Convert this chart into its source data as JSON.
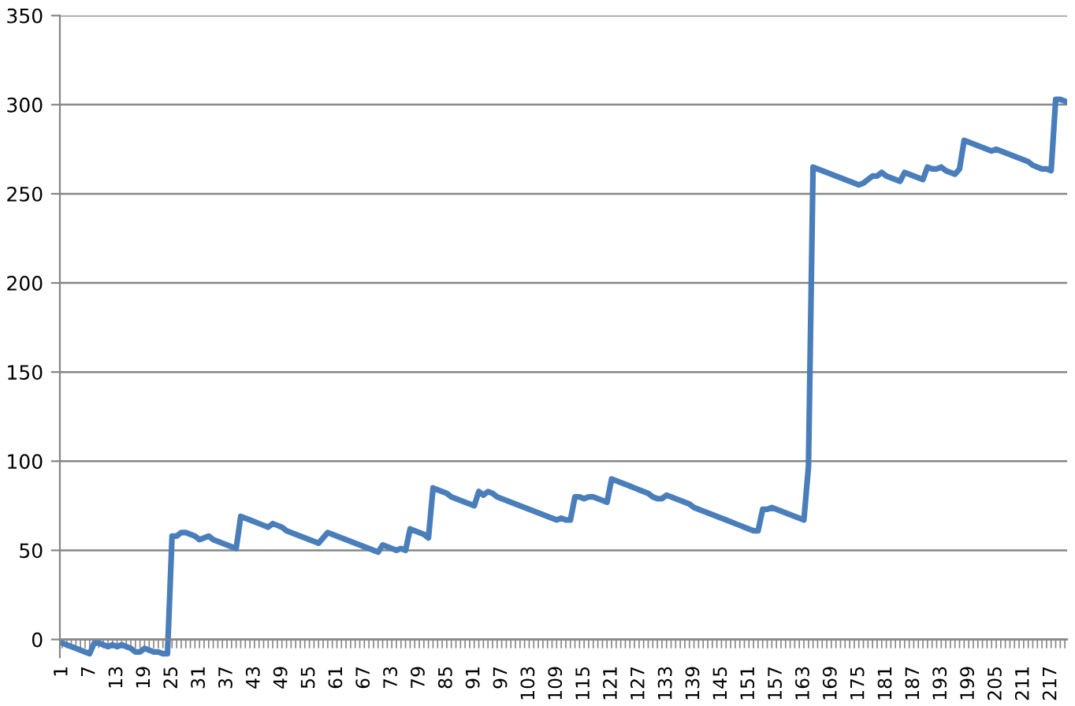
{
  "chart_data": {
    "type": "line",
    "categories": [
      "1",
      null,
      null,
      null,
      null,
      null,
      "7",
      null,
      null,
      null,
      null,
      null,
      "13",
      null,
      null,
      null,
      null,
      null,
      "19",
      null,
      null,
      null,
      null,
      null,
      "25",
      null,
      null,
      null,
      null,
      null,
      "31",
      null,
      null,
      null,
      null,
      null,
      "37",
      null,
      null,
      null,
      null,
      null,
      "43",
      null,
      null,
      null,
      null,
      null,
      "49",
      null,
      null,
      null,
      null,
      null,
      "55",
      null,
      null,
      null,
      null,
      null,
      "61",
      null,
      null,
      null,
      null,
      null,
      "67",
      null,
      null,
      null,
      null,
      null,
      "73",
      null,
      null,
      null,
      null,
      null,
      "79",
      null,
      null,
      null,
      null,
      null,
      "85",
      null,
      null,
      null,
      null,
      null,
      "91",
      null,
      null,
      null,
      null,
      null,
      "97",
      null,
      null,
      null,
      null,
      null,
      "103",
      null,
      null,
      null,
      null,
      null,
      "109",
      null,
      null,
      null,
      null,
      null,
      "115",
      null,
      null,
      null,
      null,
      null,
      "121",
      null,
      null,
      null,
      null,
      null,
      "127",
      null,
      null,
      null,
      null,
      null,
      "133",
      null,
      null,
      null,
      null,
      null,
      "139",
      null,
      null,
      null,
      null,
      null,
      "145",
      null,
      null,
      null,
      null,
      null,
      "151",
      null,
      null,
      null,
      null,
      null,
      "157",
      null,
      null,
      null,
      null,
      null,
      "163",
      null,
      null,
      null,
      null,
      null,
      "169",
      null,
      null,
      null,
      null,
      null,
      "175",
      null,
      null,
      null,
      null,
      null,
      "181",
      null,
      null,
      null,
      null,
      null,
      "187",
      null,
      null,
      null,
      null,
      null,
      "193",
      null,
      null,
      null,
      null,
      null,
      "199",
      null,
      null,
      null,
      null,
      null,
      "205",
      null,
      null,
      null,
      null,
      null,
      "211",
      null,
      null,
      null,
      null,
      null,
      "217",
      null,
      null,
      null
    ],
    "series": [
      {
        "color": "#4a7ebb",
        "values": [
          -2,
          -3,
          -4,
          -5,
          -6,
          -7,
          -8,
          -2,
          -2,
          -3,
          -4,
          -3,
          -4,
          -3,
          -4,
          -5,
          -7,
          -7,
          -5,
          -6,
          -7,
          -7,
          -8,
          -8,
          58,
          58,
          60,
          60,
          59,
          58,
          56,
          57,
          58,
          56,
          55,
          54,
          53,
          52,
          51,
          69,
          68,
          67,
          66,
          65,
          64,
          63,
          65,
          64,
          63,
          61,
          60,
          59,
          58,
          57,
          56,
          55,
          54,
          57,
          60,
          59,
          58,
          57,
          56,
          55,
          54,
          53,
          52,
          51,
          50,
          49,
          53,
          52,
          51,
          50,
          51,
          50,
          62,
          61,
          60,
          59,
          57,
          85,
          84,
          83,
          82,
          80,
          79,
          78,
          77,
          76,
          75,
          83,
          81,
          83,
          82,
          80,
          79,
          78,
          77,
          76,
          75,
          74,
          73,
          72,
          71,
          70,
          69,
          68,
          67,
          68,
          67,
          67,
          80,
          80,
          79,
          80,
          80,
          79,
          78,
          77,
          90,
          89,
          88,
          87,
          86,
          85,
          84,
          83,
          82,
          80,
          79,
          79,
          81,
          80,
          79,
          78,
          77,
          76,
          74,
          73,
          72,
          71,
          70,
          69,
          68,
          67,
          66,
          65,
          64,
          63,
          62,
          61,
          61,
          73,
          73,
          74,
          73,
          72,
          71,
          70,
          69,
          68,
          67,
          97,
          265,
          264,
          263,
          262,
          261,
          260,
          259,
          258,
          257,
          256,
          255,
          256,
          258,
          260,
          260,
          262,
          260,
          259,
          258,
          257,
          262,
          261,
          260,
          259,
          258,
          265,
          264,
          264,
          265,
          263,
          262,
          261,
          264,
          280,
          279,
          278,
          277,
          276,
          275,
          274,
          275,
          274,
          273,
          272,
          271,
          270,
          269,
          268,
          266,
          265,
          264,
          264,
          263,
          303,
          303,
          302
        ]
      }
    ],
    "ylim": [
      -10,
      350
    ],
    "yticks": [
      0,
      50,
      100,
      150,
      200,
      250,
      300,
      350
    ],
    "grid": "y",
    "marker": "none",
    "line_style": "solid"
  }
}
